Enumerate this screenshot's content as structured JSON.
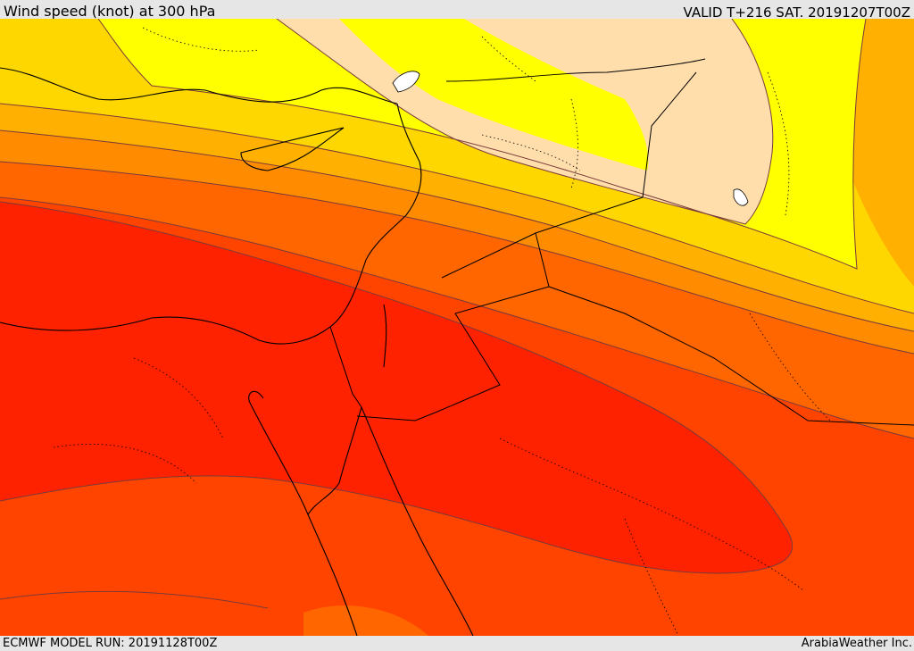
{
  "header": {
    "title": "Wind speed (knot) at 300 hPa",
    "valid": "VALID T+216 SAT. 20191207T00Z"
  },
  "footer": {
    "model_run": "ECMWF MODEL RUN: 20191128T00Z",
    "credit": "ArabiaWeather Inc."
  },
  "map": {
    "colors": {
      "band_light_tan": "#ffdeab",
      "band_yellow": "#ffff00",
      "band_gold": "#ffd700",
      "band_amber": "#ffb000",
      "band_orange": "#ff8c00",
      "band_dark_orange": "#ff6600",
      "band_red_orange": "#ff4400",
      "band_red": "#ff2200",
      "contour": "#7a3a3a",
      "border": "#000000"
    }
  }
}
